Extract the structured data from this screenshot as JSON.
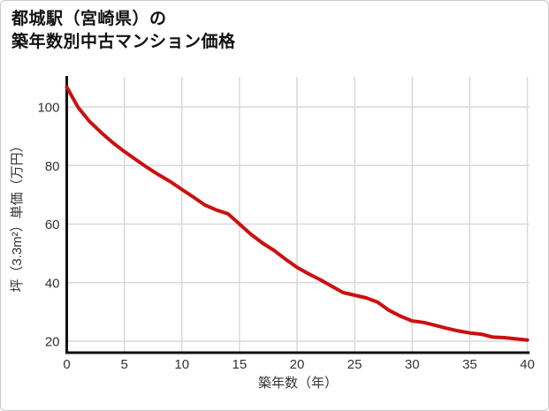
{
  "title": {
    "line1": "都城駅（宮崎県）の",
    "line2": "築年数別中古マンション価格"
  },
  "chart_data": {
    "type": "line",
    "title": "都城駅（宮崎県）の築年数別中古マンション価格",
    "xlabel": "築年数（年）",
    "ylabel": "坪（3.3m²）単価（万円）",
    "x": [
      0,
      1,
      2,
      3,
      4,
      5,
      6,
      7,
      8,
      9,
      10,
      11,
      12,
      13,
      14,
      15,
      16,
      17,
      18,
      19,
      20,
      21,
      22,
      23,
      24,
      25,
      26,
      27,
      28,
      29,
      30,
      31,
      32,
      33,
      34,
      35,
      36,
      37,
      38,
      39,
      40
    ],
    "series": [
      {
        "name": "中古マンション価格",
        "values": [
          106.8,
          99.8,
          95.0,
          91.2,
          87.8,
          84.8,
          82.0,
          79.3,
          76.8,
          74.5,
          71.8,
          69.2,
          66.5,
          64.8,
          63.5,
          60.0,
          56.5,
          53.5,
          51.0,
          48.0,
          45.2,
          43.0,
          41.0,
          38.8,
          36.6,
          35.7,
          34.8,
          33.3,
          30.5,
          28.5,
          26.9,
          26.4,
          25.4,
          24.4,
          23.5,
          22.8,
          22.4,
          21.4,
          21.2,
          20.8,
          20.4
        ]
      }
    ],
    "x_ticks": [
      0,
      5,
      10,
      15,
      20,
      25,
      30,
      35,
      40
    ],
    "y_ticks": [
      20,
      40,
      60,
      80,
      100
    ],
    "xlim": [
      0,
      40.2
    ],
    "ylim": [
      16.5,
      110.3
    ],
    "grid": "on",
    "legend": "none"
  },
  "colors": {
    "line": "#cc1010",
    "grid": "#d9d9d9",
    "axis": "#111111",
    "tick_label": "#333333",
    "background": "#ffffff"
  }
}
